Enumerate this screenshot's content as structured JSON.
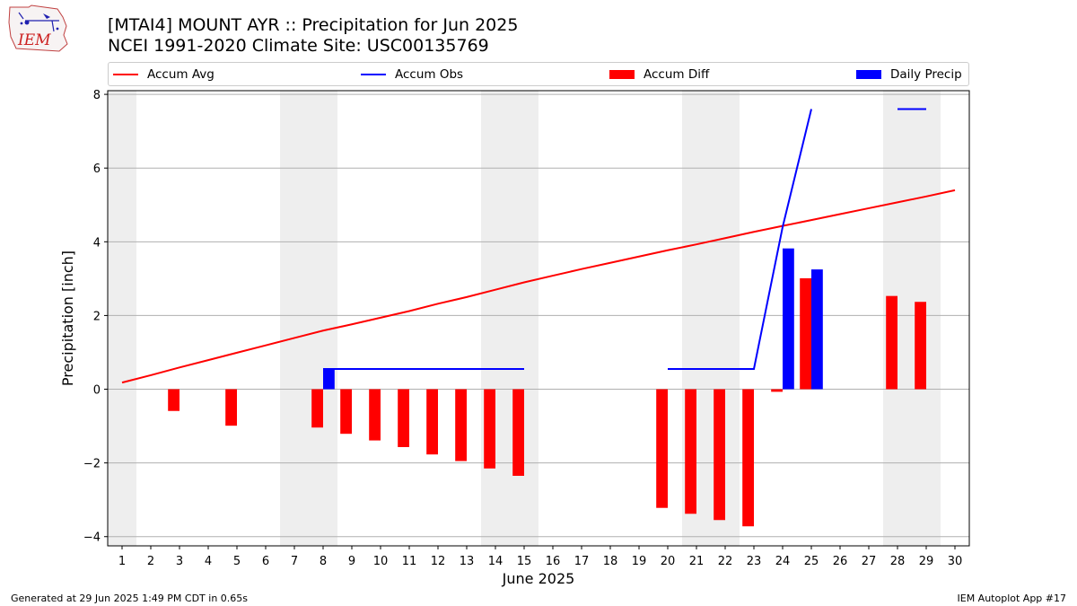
{
  "header": {
    "title_line1": "[MTAI4] MOUNT AYR :: Precipitation for Jun 2025",
    "title_line2": "NCEI 1991-2020 Climate Site: USC00135769",
    "logo_text": "IEM"
  },
  "footer": {
    "generated": "Generated at 29 Jun 2025 1:49 PM CDT in 0.65s",
    "app": "IEM Autoplot App #17"
  },
  "chart_data": {
    "type": "bar",
    "xlabel": "June 2025",
    "ylabel": "Precipitation [inch]",
    "xlim": [
      0.5,
      30.5
    ],
    "ylim": [
      -4.25,
      8.1
    ],
    "x_ticks": [
      1,
      2,
      3,
      4,
      5,
      6,
      7,
      8,
      9,
      10,
      11,
      12,
      13,
      14,
      15,
      16,
      17,
      18,
      19,
      20,
      21,
      22,
      23,
      24,
      25,
      26,
      27,
      28,
      29,
      30
    ],
    "y_ticks": [
      -4,
      -2,
      0,
      2,
      4,
      6,
      8
    ],
    "y_tick_labels": [
      "−4",
      "−2",
      "0",
      "2",
      "4",
      "6",
      "8"
    ],
    "grid": "horizontal",
    "legend_position": "top",
    "weekend_shading": [
      [
        0.5,
        1.5
      ],
      [
        6.5,
        8.5
      ],
      [
        13.5,
        15.5
      ],
      [
        20.5,
        22.5
      ],
      [
        27.5,
        29.5
      ]
    ],
    "series": [
      {
        "name": "Accum Avg",
        "kind": "line",
        "color": "#ff0000",
        "x": [
          1,
          2,
          3,
          4,
          5,
          6,
          7,
          8,
          9,
          10,
          11,
          12,
          13,
          14,
          15,
          16,
          17,
          18,
          19,
          20,
          21,
          22,
          23,
          24,
          25,
          26,
          27,
          28,
          29,
          30
        ],
        "values": [
          0.18,
          0.38,
          0.59,
          0.79,
          0.99,
          1.19,
          1.39,
          1.59,
          1.76,
          1.94,
          2.12,
          2.32,
          2.5,
          2.7,
          2.9,
          3.08,
          3.26,
          3.43,
          3.6,
          3.77,
          3.93,
          4.1,
          4.27,
          4.43,
          4.59,
          4.75,
          4.91,
          5.07,
          5.23,
          5.4
        ]
      },
      {
        "name": "Accum Obs",
        "kind": "line",
        "color": "#0000ff",
        "segments": [
          {
            "x": [
              8,
              9,
              10,
              11,
              12,
              13,
              14,
              15
            ],
            "values": [
              0.55,
              0.55,
              0.55,
              0.55,
              0.55,
              0.55,
              0.55,
              0.55
            ]
          },
          {
            "x": [
              20,
              21,
              22,
              23,
              24,
              25
            ],
            "values": [
              0.55,
              0.55,
              0.55,
              0.55,
              4.4,
              7.6
            ]
          },
          {
            "x": [
              28,
              29
            ],
            "values": [
              7.6,
              7.6
            ]
          }
        ]
      },
      {
        "name": "Accum Diff",
        "kind": "bar",
        "color": "#ff0000",
        "x": [
          3,
          5,
          8,
          9,
          10,
          11,
          12,
          13,
          14,
          15,
          20,
          21,
          22,
          23,
          24,
          25,
          28,
          29
        ],
        "values": [
          -0.59,
          -0.99,
          -1.04,
          -1.21,
          -1.39,
          -1.57,
          -1.77,
          -1.95,
          -2.15,
          -2.35,
          -3.22,
          -3.38,
          -3.55,
          -3.72,
          -0.07,
          3.01,
          2.53,
          2.37
        ]
      },
      {
        "name": "Daily Precip",
        "kind": "bar",
        "color": "#0000ff",
        "x": [
          8,
          24,
          25
        ],
        "values": [
          0.55,
          3.82,
          3.25
        ]
      }
    ]
  }
}
